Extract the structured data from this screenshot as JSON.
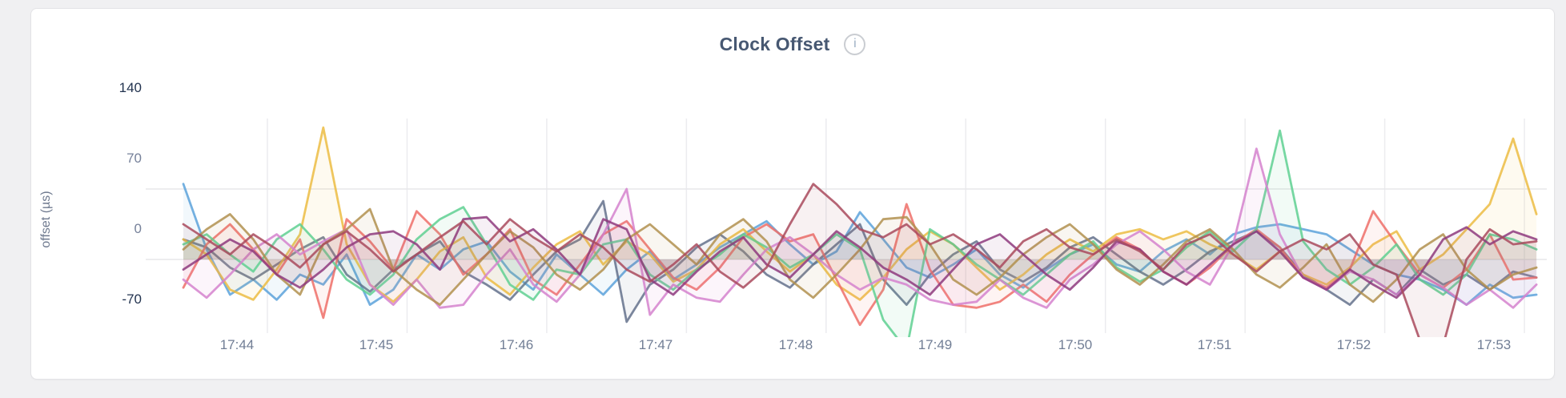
{
  "header": {
    "title": "Clock Offset",
    "info_icon_glyph": "i"
  },
  "chart_data": {
    "type": "line",
    "title": "Clock Offset",
    "xlabel": "",
    "ylabel": "offset (µs)",
    "ylim": [
      -70,
      140
    ],
    "grid": true,
    "legend": "none",
    "x_ticks": [
      "17:44",
      "17:45",
      "17:46",
      "17:47",
      "17:48",
      "17:49",
      "17:50",
      "17:51",
      "17:52",
      "17:53"
    ],
    "y_ticks": [
      {
        "value": 140,
        "label": "140",
        "emphasis": true,
        "gridline": false
      },
      {
        "value": 70,
        "label": "70",
        "emphasis": false,
        "gridline": true
      },
      {
        "value": 0,
        "label": "0",
        "emphasis": false,
        "gridline": true
      },
      {
        "value": -70,
        "label": "-70",
        "emphasis": true,
        "gridline": false
      }
    ],
    "x_start_minute_offset": 0,
    "x_sample_interval_seconds": 10,
    "x_first_tick_at_minute": 0.6,
    "x_tick_interval_minutes": 1,
    "series": [
      {
        "color": "#5CA2DA",
        "values": [
          75,
          10,
          -35,
          -20,
          -40,
          -15,
          -25,
          5,
          -45,
          -30,
          5,
          -10,
          10,
          18,
          -12,
          -30,
          5,
          -15,
          -35,
          -10,
          8,
          -20,
          -5,
          12,
          25,
          38,
          15,
          -5,
          8,
          47,
          20,
          -8,
          -18,
          -5,
          10,
          -15,
          -28,
          -10,
          5,
          15,
          -5,
          -12,
          8,
          20,
          5,
          25,
          32,
          35,
          30,
          25,
          10,
          -5,
          -15,
          -20,
          -30,
          -45,
          -25,
          -38,
          -35
        ]
      },
      {
        "color": "#64718C",
        "values": [
          20,
          12,
          -8,
          -20,
          -5,
          10,
          22,
          -15,
          -32,
          -10,
          5,
          18,
          -12,
          -25,
          -40,
          -15,
          8,
          20,
          58,
          -62,
          -25,
          -10,
          12,
          25,
          8,
          -15,
          -28,
          -5,
          15,
          35,
          -20,
          -45,
          -15,
          5,
          18,
          -10,
          -22,
          -8,
          12,
          22,
          5,
          -12,
          -25,
          -10,
          8,
          18,
          28,
          12,
          -15,
          -30,
          -45,
          -20,
          -35,
          -10,
          -25,
          -15,
          -30,
          -12,
          -18
        ]
      },
      {
        "color": "#ECBC43",
        "values": [
          20,
          5,
          -30,
          -40,
          -10,
          25,
          131,
          15,
          -25,
          -42,
          -20,
          8,
          22,
          -18,
          -35,
          -8,
          15,
          28,
          -5,
          18,
          5,
          -22,
          -10,
          15,
          30,
          8,
          -12,
          5,
          -25,
          -40,
          -18,
          10,
          28,
          15,
          -8,
          -30,
          -15,
          5,
          20,
          8,
          25,
          30,
          20,
          28,
          15,
          5,
          -10,
          8,
          -15,
          -25,
          -8,
          15,
          28,
          -10,
          5,
          30,
          55,
          120,
          45
        ]
      },
      {
        "color": "#EE6F68",
        "values": [
          -28,
          15,
          35,
          10,
          -15,
          20,
          -58,
          40,
          18,
          -10,
          48,
          25,
          -15,
          5,
          30,
          -20,
          -35,
          -5,
          25,
          38,
          10,
          -18,
          -30,
          -8,
          22,
          35,
          18,
          25,
          -20,
          -65,
          -30,
          55,
          -10,
          -45,
          -48,
          -42,
          -25,
          -42,
          -15,
          5,
          22,
          10,
          -12,
          -25,
          -8,
          15,
          30,
          12,
          -18,
          -28,
          -10,
          48,
          15,
          -15,
          -28,
          -10,
          25,
          -20,
          -18
        ]
      },
      {
        "color": "#5FD092",
        "values": [
          15,
          25,
          5,
          -12,
          20,
          35,
          10,
          -20,
          -35,
          -15,
          20,
          40,
          52,
          15,
          -25,
          -40,
          -10,
          -15,
          15,
          20,
          -15,
          -30,
          -10,
          5,
          25,
          12,
          -8,
          5,
          25,
          10,
          -60,
          -90,
          30,
          15,
          -5,
          -20,
          -35,
          -15,
          5,
          18,
          -8,
          -22,
          -10,
          12,
          28,
          8,
          30,
          128,
          18,
          -10,
          -25,
          -8,
          15,
          -20,
          -35,
          -15,
          25,
          20,
          10
        ]
      },
      {
        "color": "#D583CE",
        "values": [
          -20,
          -38,
          -15,
          10,
          25,
          5,
          18,
          30,
          -25,
          -45,
          -20,
          -48,
          -45,
          -15,
          10,
          -25,
          -42,
          -15,
          25,
          70,
          -55,
          -25,
          -38,
          -42,
          -15,
          10,
          22,
          5,
          -15,
          -30,
          -18,
          -25,
          -40,
          -45,
          -42,
          -20,
          -38,
          -48,
          -20,
          -5,
          15,
          28,
          10,
          -12,
          -25,
          15,
          110,
          25,
          -18,
          -30,
          -12,
          -20,
          -35,
          -15,
          -28,
          -45,
          -30,
          -48,
          -25
        ]
      },
      {
        "color": "#B2914F",
        "values": [
          10,
          30,
          45,
          20,
          -15,
          -35,
          15,
          30,
          50,
          -10,
          -30,
          -45,
          -20,
          5,
          28,
          12,
          -15,
          -30,
          -10,
          20,
          35,
          15,
          -5,
          25,
          40,
          18,
          -20,
          -38,
          -15,
          10,
          40,
          42,
          15,
          -20,
          -35,
          -18,
          5,
          22,
          35,
          15,
          -10,
          -25,
          -5,
          18,
          30,
          10,
          -15,
          -28,
          -8,
          15,
          -25,
          -42,
          -20,
          10,
          25,
          -10,
          -30,
          -15,
          -8
        ]
      },
      {
        "color": "#8E3A7E",
        "values": [
          -10,
          5,
          20,
          8,
          -15,
          -28,
          -10,
          12,
          25,
          28,
          15,
          -10,
          40,
          42,
          18,
          30,
          10,
          -15,
          40,
          30,
          -20,
          -35,
          -12,
          8,
          22,
          -5,
          -18,
          5,
          28,
          12,
          -8,
          -20,
          -35,
          -10,
          15,
          25,
          5,
          -15,
          -30,
          -8,
          18,
          10,
          -12,
          -25,
          -5,
          15,
          28,
          8,
          -18,
          -30,
          -10,
          -25,
          -38,
          -15,
          20,
          32,
          15,
          28,
          20
        ]
      },
      {
        "color": "#A94A5D",
        "values": [
          35,
          20,
          5,
          25,
          10,
          -8,
          15,
          28,
          10,
          -12,
          5,
          22,
          38,
          15,
          40,
          22,
          8,
          25,
          12,
          -10,
          -22,
          -5,
          15,
          -12,
          -28,
          -8,
          35,
          75,
          55,
          30,
          22,
          35,
          15,
          25,
          10,
          -8,
          18,
          30,
          12,
          5,
          20,
          8,
          -10,
          15,
          25,
          5,
          -12,
          8,
          20,
          10,
          25,
          -5,
          -15,
          -80,
          -85,
          0,
          30,
          15,
          18
        ]
      }
    ]
  }
}
